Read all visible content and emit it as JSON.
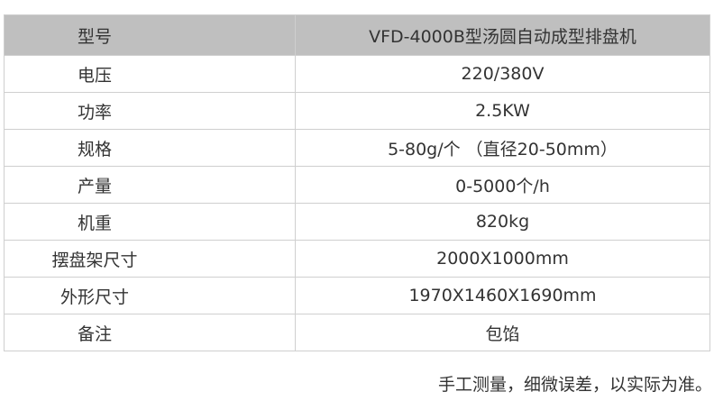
{
  "table": {
    "header": {
      "label": "型号",
      "value": "VFD-4000B型汤圆自动成型排盘机"
    },
    "rows": [
      {
        "label": "电压",
        "value": "220/380V"
      },
      {
        "label": "功率",
        "value": "2.5KW"
      },
      {
        "label": "规格",
        "value": "5-80g/个 （直径20-50mm）"
      },
      {
        "label": "产量",
        "value": "0-5000个/h"
      },
      {
        "label": "机重",
        "value": "820kg"
      },
      {
        "label": "摆盘架尺寸",
        "value": "2000X1000mm"
      },
      {
        "label": "外形尺寸",
        "value": "1970X1460X1690mm"
      },
      {
        "label": "备注",
        "value": "包馅"
      }
    ],
    "header_bg": "#bfbfbf"
  },
  "note": "手工测量，细微误差，以实际为准。"
}
